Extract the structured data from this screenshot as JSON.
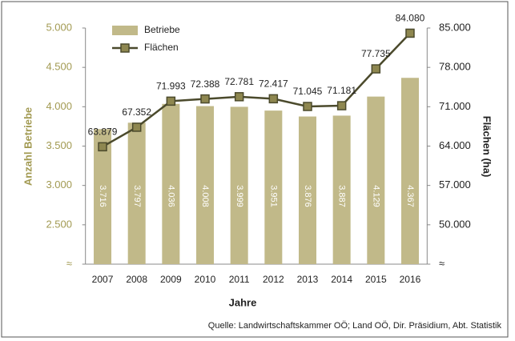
{
  "chart_data": {
    "type": "bar",
    "xlabel": "Jahre",
    "ylabel": "Anzahl Betriebe",
    "y2label": "Flächen (ha)",
    "source": "Quelle: Landwirtschaftskammer OÖ; Land OÖ, Dir. Präsidium, Abt. Statistik",
    "categories": [
      "2007",
      "2008",
      "2009",
      "2010",
      "2011",
      "2012",
      "2013",
      "2014",
      "2015",
      "2016"
    ],
    "series": [
      {
        "name": "Betriebe",
        "type": "bar",
        "color": "#c1b989",
        "values": [
          3716,
          3797,
          4036,
          4008,
          3999,
          3951,
          3876,
          3887,
          4129,
          4367
        ],
        "value_labels": [
          "3.716",
          "3.797",
          "4.036",
          "4.008",
          "3.999",
          "3.951",
          "3.876",
          "3.887",
          "4.129",
          "4.367"
        ]
      },
      {
        "name": "Flächen",
        "type": "line",
        "axis": "y2",
        "color": "#4b4a2c",
        "marker_color": "#8e8750",
        "values": [
          63879,
          67352,
          71993,
          72388,
          72781,
          72417,
          71045,
          71181,
          77735,
          84080
        ],
        "value_labels": [
          "63.879",
          "67.352",
          "71.993",
          "72.388",
          "72.781",
          "72.417",
          "71.045",
          "71.181",
          "77.735",
          "84.080"
        ]
      }
    ],
    "ylim": [
      2000,
      5000
    ],
    "yticks": [
      {
        "value": 2000,
        "label": "≈"
      },
      {
        "value": 2500,
        "label": "2.500"
      },
      {
        "value": 3000,
        "label": "3.000"
      },
      {
        "value": 3500,
        "label": "3.500"
      },
      {
        "value": 4000,
        "label": "4.000"
      },
      {
        "value": 4500,
        "label": "4.500"
      },
      {
        "value": 5000,
        "label": "5.000"
      }
    ],
    "y2lim": [
      43000,
      85000
    ],
    "y2ticks": [
      {
        "value": 43000,
        "label": "≈"
      },
      {
        "value": 50000,
        "label": "50.000"
      },
      {
        "value": 57000,
        "label": "57.000"
      },
      {
        "value": 64000,
        "label": "64.000"
      },
      {
        "value": 71000,
        "label": "71.000"
      },
      {
        "value": 78000,
        "label": "78.000"
      },
      {
        "value": 85000,
        "label": "85.000"
      }
    ],
    "legend": "upper left"
  }
}
